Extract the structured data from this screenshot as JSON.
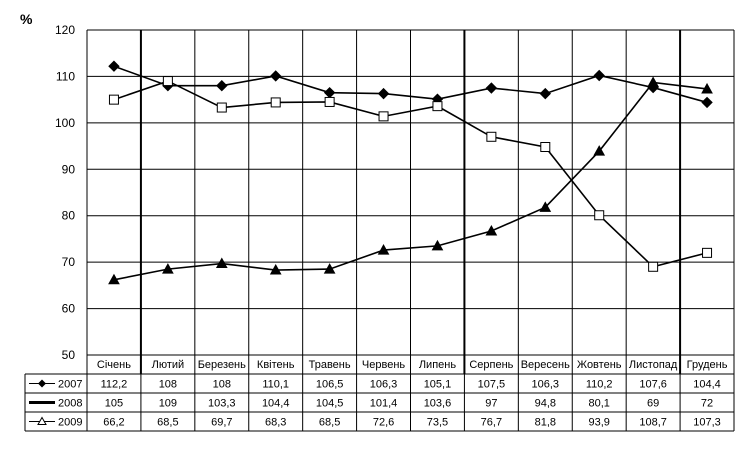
{
  "chart_data": {
    "type": "line",
    "y_unit_label": "%",
    "categories": [
      "Січень",
      "Лютий",
      "Березень",
      "Квітень",
      "Травень",
      "Червень",
      "Липень",
      "Серпень",
      "Вересень",
      "Жовтень",
      "Листопад",
      "Грудень"
    ],
    "ylim": [
      50,
      120
    ],
    "yticks": [
      "50",
      "60",
      "70",
      "80",
      "90",
      "100",
      "110",
      "120"
    ],
    "grid": "vertical and horizontal",
    "legend": "data-table below chart",
    "series": [
      {
        "name": "2007",
        "marker": "filled-diamond",
        "color": "#000000",
        "values": [
          112.2,
          108,
          108,
          110.1,
          106.5,
          106.3,
          105.1,
          107.5,
          106.3,
          110.2,
          107.6,
          104.4
        ],
        "labels": [
          "112,2",
          "108",
          "108",
          "110,1",
          "106,5",
          "106,3",
          "105,1",
          "107,5",
          "106,3",
          "110,2",
          "107,6",
          "104,4"
        ]
      },
      {
        "name": "2008",
        "marker": "open-square",
        "color": "#000000",
        "values": [
          105,
          109,
          103.3,
          104.4,
          104.5,
          101.4,
          103.6,
          97,
          94.8,
          80.1,
          69,
          72
        ],
        "labels": [
          "105",
          "109",
          "103,3",
          "104,4",
          "104,5",
          "101,4",
          "103,6",
          "97",
          "94,8",
          "80,1",
          "69",
          "72"
        ]
      },
      {
        "name": "2009",
        "marker": "filled-triangle",
        "color": "#000000",
        "values": [
          66.2,
          68.5,
          69.7,
          68.3,
          68.5,
          72.6,
          73.5,
          76.7,
          81.8,
          93.9,
          108.7,
          107.3
        ],
        "labels": [
          "66,2",
          "68,5",
          "69,7",
          "68,3",
          "68,5",
          "72,6",
          "73,5",
          "76,7",
          "81,8",
          "93,9",
          "108,7",
          "107,3"
        ]
      }
    ]
  }
}
